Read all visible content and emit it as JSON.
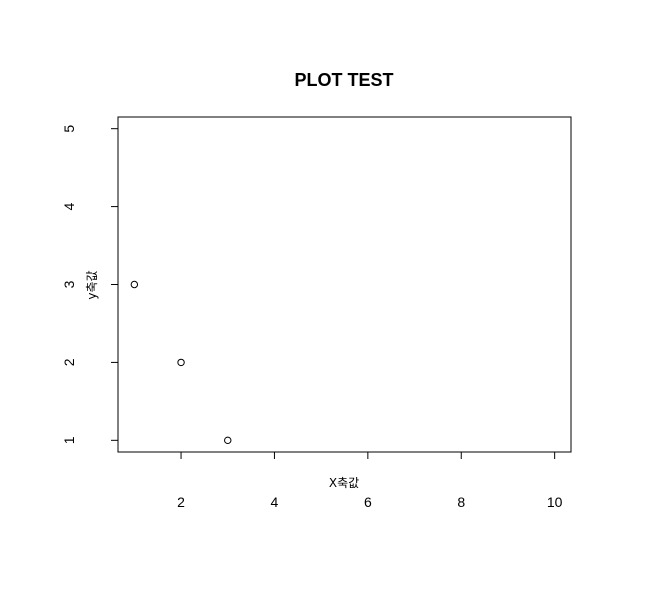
{
  "chart_data": {
    "type": "scatter",
    "title": "PLOT TEST",
    "xlabel": "X축값",
    "ylabel": "y축값",
    "x": [
      1,
      2,
      3
    ],
    "y": [
      3,
      2,
      1
    ],
    "xlim": [
      0.65,
      10.35
    ],
    "ylim": [
      0.85,
      5.15
    ],
    "xticks": [
      2,
      4,
      6,
      8,
      10
    ],
    "yticks": [
      1,
      2,
      3,
      4,
      5
    ],
    "grid": false,
    "marker": "open-circle",
    "color": "#000000"
  }
}
